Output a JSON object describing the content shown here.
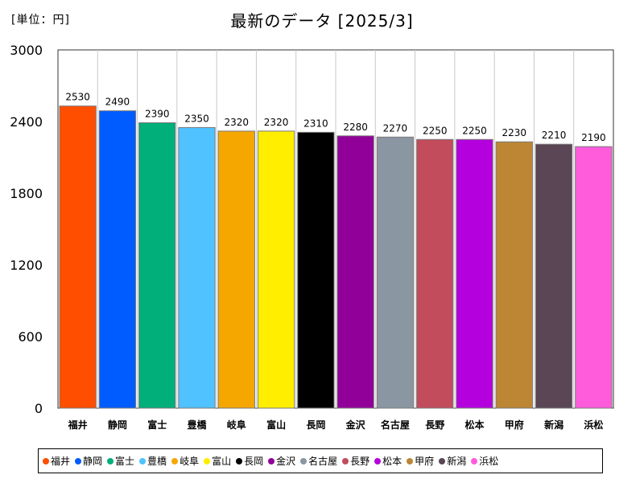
{
  "unit_label": "[単位：円]",
  "chart_data": {
    "type": "bar",
    "title": "最新のデータ [2025/3]",
    "categories": [
      "福井",
      "静岡",
      "富士",
      "豊橋",
      "岐阜",
      "富山",
      "長岡",
      "金沢",
      "名古屋",
      "長野",
      "松本",
      "甲府",
      "新潟",
      "浜松"
    ],
    "values": [
      2530,
      2490,
      2390,
      2350,
      2320,
      2320,
      2310,
      2280,
      2270,
      2250,
      2250,
      2230,
      2210,
      2190
    ],
    "colors": [
      "#FF4E00",
      "#005CFF",
      "#00AF7A",
      "#4FC2FF",
      "#F5A700",
      "#FFEE00",
      "#000000",
      "#92009A",
      "#8A96A2",
      "#C24C5C",
      "#B400DC",
      "#BC8634",
      "#5A4655",
      "#FF5CDC"
    ],
    "ylim": [
      0,
      3000
    ],
    "yticks": [
      0,
      600,
      1200,
      1800,
      2400,
      3000
    ],
    "grid": false,
    "legend_position": "bottom"
  }
}
